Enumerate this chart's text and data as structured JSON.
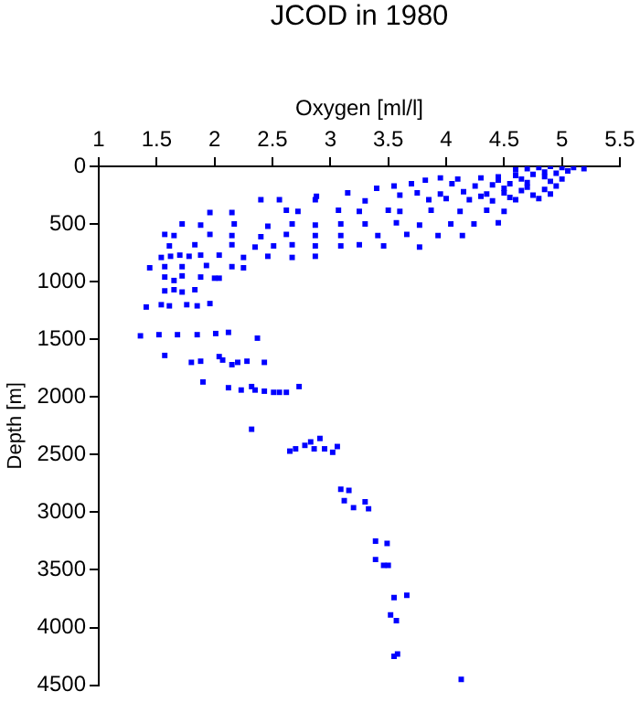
{
  "chart_data": {
    "type": "scatter",
    "title": "JCOD in 1980",
    "xlabel": "Oxygen [ml/l]",
    "ylabel": "Depth [m]",
    "x": [
      5.19,
      5.1,
      5.0,
      4.9,
      4.8,
      4.7,
      4.6,
      5.05,
      4.95,
      4.85,
      4.75,
      4.6,
      4.45,
      4.3,
      4.1,
      3.95,
      3.82,
      5.0,
      4.9,
      4.7,
      4.55,
      4.4,
      4.25,
      4.05,
      3.7,
      3.55,
      3.4,
      4.85,
      4.65,
      4.5,
      4.35,
      4.15,
      3.95,
      3.75,
      3.6,
      4.8,
      4.6,
      4.4,
      4.2,
      4.0,
      3.85,
      3.15,
      2.88,
      2.4,
      2.56,
      2.87,
      3.3,
      4.5,
      4.7,
      4.95,
      4.3,
      4.55,
      4.75,
      4.9,
      4.45,
      4.65,
      4.85,
      2.62,
      2.72,
      3.07,
      3.25,
      3.5,
      3.6,
      3.87,
      4.12,
      4.35,
      4.5,
      1.96,
      2.15,
      1.72,
      1.88,
      2.17,
      2.46,
      2.67,
      2.87,
      3.09,
      3.3,
      3.57,
      3.77,
      4.04,
      4.24,
      4.45,
      1.57,
      1.65,
      1.96,
      2.15,
      2.4,
      2.62,
      2.87,
      3.09,
      3.41,
      3.66,
      3.93,
      4.14,
      1.61,
      1.83,
      2.15,
      2.35,
      2.51,
      2.67,
      2.87,
      3.09,
      3.25,
      3.46,
      3.77,
      1.54,
      1.62,
      1.7,
      1.78,
      1.88,
      2.04,
      2.25,
      2.46,
      2.67,
      2.87,
      1.44,
      1.57,
      1.72,
      1.93,
      2.15,
      2.25,
      1.57,
      1.72,
      1.88,
      2.0,
      1.65,
      2.04,
      1.57,
      1.65,
      1.72,
      1.83,
      1.41,
      1.54,
      1.61,
      1.76,
      1.85,
      1.96,
      1.36,
      1.52,
      1.68,
      1.85,
      2.01,
      2.12,
      2.37,
      1.57,
      1.8,
      1.88,
      2.04,
      2.07,
      2.15,
      2.2,
      2.28,
      2.43,
      1.9,
      2.12,
      2.23,
      2.32,
      2.35,
      2.43,
      2.51,
      2.56,
      2.62,
      2.73,
      2.32,
      2.65,
      2.7,
      2.78,
      2.83,
      2.86,
      2.91,
      2.95,
      3.02,
      3.06,
      3.09,
      3.16,
      3.12,
      3.2,
      3.3,
      3.33,
      3.39,
      3.49,
      3.39,
      3.46,
      3.5,
      3.55,
      3.66,
      3.52,
      3.57,
      3.55,
      3.58,
      4.13
    ],
    "values": [
      20,
      10,
      10,
      0,
      10,
      20,
      30,
      40,
      60,
      50,
      70,
      80,
      90,
      100,
      110,
      100,
      120,
      110,
      130,
      140,
      150,
      160,
      170,
      150,
      150,
      170,
      190,
      200,
      210,
      230,
      240,
      220,
      240,
      230,
      250,
      280,
      290,
      300,
      290,
      280,
      290,
      230,
      260,
      290,
      290,
      290,
      300,
      190,
      180,
      170,
      260,
      270,
      250,
      240,
      120,
      110,
      90,
      380,
      390,
      380,
      390,
      380,
      390,
      380,
      390,
      380,
      390,
      400,
      400,
      500,
      510,
      500,
      520,
      500,
      510,
      500,
      500,
      490,
      510,
      500,
      500,
      490,
      590,
      600,
      590,
      600,
      610,
      590,
      600,
      600,
      600,
      590,
      600,
      600,
      690,
      680,
      680,
      700,
      690,
      680,
      690,
      690,
      680,
      690,
      700,
      790,
      780,
      770,
      780,
      770,
      770,
      790,
      780,
      790,
      780,
      880,
      870,
      870,
      860,
      870,
      880,
      960,
      950,
      960,
      970,
      990,
      970,
      1080,
      1070,
      1090,
      1070,
      1220,
      1200,
      1210,
      1200,
      1210,
      1190,
      1470,
      1460,
      1460,
      1460,
      1450,
      1440,
      1490,
      1640,
      1700,
      1690,
      1650,
      1680,
      1720,
      1700,
      1690,
      1700,
      1870,
      1920,
      1940,
      1910,
      1940,
      1950,
      1960,
      1960,
      1960,
      1910,
      2280,
      2470,
      2450,
      2420,
      2390,
      2450,
      2360,
      2450,
      2480,
      2430,
      2800,
      2810,
      2900,
      2960,
      2910,
      2970,
      3250,
      3270,
      3410,
      3460,
      3460,
      3740,
      3720,
      3890,
      3940,
      4250,
      4230,
      4450
    ],
    "color": "#0000ff",
    "marker": "square",
    "xlim": [
      1,
      5.5
    ],
    "xticks": [
      1,
      1.5,
      2,
      2.5,
      3,
      3.5,
      4,
      4.5,
      5,
      5.5
    ],
    "ylim": [
      4500,
      0
    ],
    "yticks": [
      0,
      500,
      1000,
      1500,
      2000,
      2500,
      3000,
      3500,
      4000,
      4500
    ],
    "grid": false,
    "legend": false
  }
}
